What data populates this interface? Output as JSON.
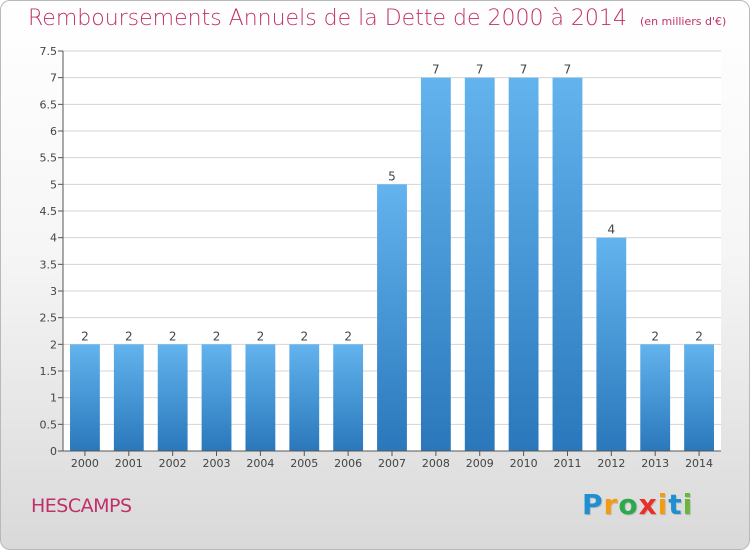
{
  "title": "Remboursements Annuels de la Dette de 2000 à 2014",
  "subtitle": "(en milliers d'€)",
  "place": "HESCAMPS",
  "logo": {
    "letters": [
      "P",
      "r",
      "o",
      "x",
      "i",
      "t",
      "i"
    ],
    "colors": [
      "#1e8fd0",
      "#f39c12",
      "#2ea84a",
      "#e8302a",
      "#f39c12",
      "#1e8fd0",
      "#6cb33f"
    ]
  },
  "colors": {
    "bar_light": "#63b3ee",
    "bar_dark": "#2a78bb",
    "title": "#c0306a"
  },
  "chart_data": {
    "type": "bar",
    "categories": [
      "2000",
      "2001",
      "2002",
      "2003",
      "2004",
      "2005",
      "2006",
      "2007",
      "2008",
      "2009",
      "2010",
      "2011",
      "2012",
      "2013",
      "2014"
    ],
    "values": [
      2,
      2,
      2,
      2,
      2,
      2,
      2,
      5,
      7,
      7,
      7,
      7,
      4,
      2,
      2
    ],
    "title": "Remboursements Annuels de la Dette de 2000 à 2014",
    "ylim": [
      0,
      7.5
    ],
    "yticks": [
      "0",
      "0.5",
      "1",
      "1.5",
      "2",
      "2.5",
      "3",
      "3.5",
      "4",
      "4.5",
      "5",
      "5.5",
      "6",
      "6.5",
      "7",
      "7.5"
    ],
    "grid": true,
    "data_labels": true
  }
}
